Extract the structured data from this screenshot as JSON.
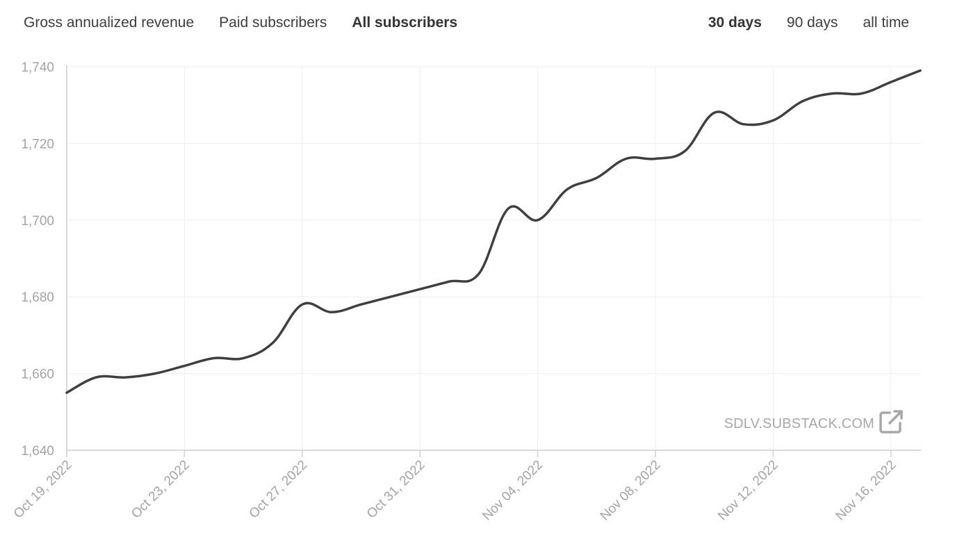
{
  "metric_tabs": [
    {
      "label": "Gross annualized revenue",
      "active": false
    },
    {
      "label": "Paid subscribers",
      "active": false
    },
    {
      "label": "All subscribers",
      "active": true
    }
  ],
  "range_tabs": [
    {
      "label": "30 days",
      "active": true
    },
    {
      "label": "90 days",
      "active": false
    },
    {
      "label": "all time",
      "active": false
    }
  ],
  "watermark": {
    "label": "SDLV.SUBSTACK.COM",
    "icon": "external-link-icon"
  },
  "colors": {
    "line": "#3f3f3f",
    "axis_text": "#a4a4a4",
    "grid": "#eeeeee"
  },
  "chart_data": {
    "type": "line",
    "title": "",
    "xlabel": "",
    "ylabel": "",
    "x": [
      "2022-10-19",
      "2022-10-20",
      "2022-10-21",
      "2022-10-22",
      "2022-10-23",
      "2022-10-24",
      "2022-10-25",
      "2022-10-26",
      "2022-10-27",
      "2022-10-28",
      "2022-10-29",
      "2022-10-30",
      "2022-10-31",
      "2022-11-01",
      "2022-11-02",
      "2022-11-03",
      "2022-11-04",
      "2022-11-05",
      "2022-11-06",
      "2022-11-07",
      "2022-11-08",
      "2022-11-09",
      "2022-11-10",
      "2022-11-11",
      "2022-11-12",
      "2022-11-13",
      "2022-11-14",
      "2022-11-15",
      "2022-11-16",
      "2022-11-17"
    ],
    "series": [
      {
        "values": [
          1655,
          1659,
          1659,
          1660,
          1662,
          1664,
          1664,
          1668,
          1678,
          1676,
          1678,
          1680,
          1682,
          1684,
          1686,
          1703,
          1700,
          1708,
          1711,
          1716,
          1716,
          1718,
          1728,
          1725,
          1726,
          1731,
          1733,
          1733,
          1736,
          1739
        ]
      }
    ],
    "x_tick_labels": [
      "Oct 19, 2022",
      "Oct 23, 2022",
      "Oct 27, 2022",
      "Oct 31, 2022",
      "Nov 04, 2022",
      "Nov 08, 2022",
      "Nov 12, 2022",
      "Nov 16, 2022"
    ],
    "y_ticks": [
      1640,
      1660,
      1680,
      1700,
      1720,
      1740
    ],
    "y_tick_labels": [
      "1,640",
      "1,660",
      "1,680",
      "1,700",
      "1,720",
      "1,740"
    ],
    "ylim": [
      1640,
      1740
    ],
    "grid": true,
    "legend": "none"
  }
}
